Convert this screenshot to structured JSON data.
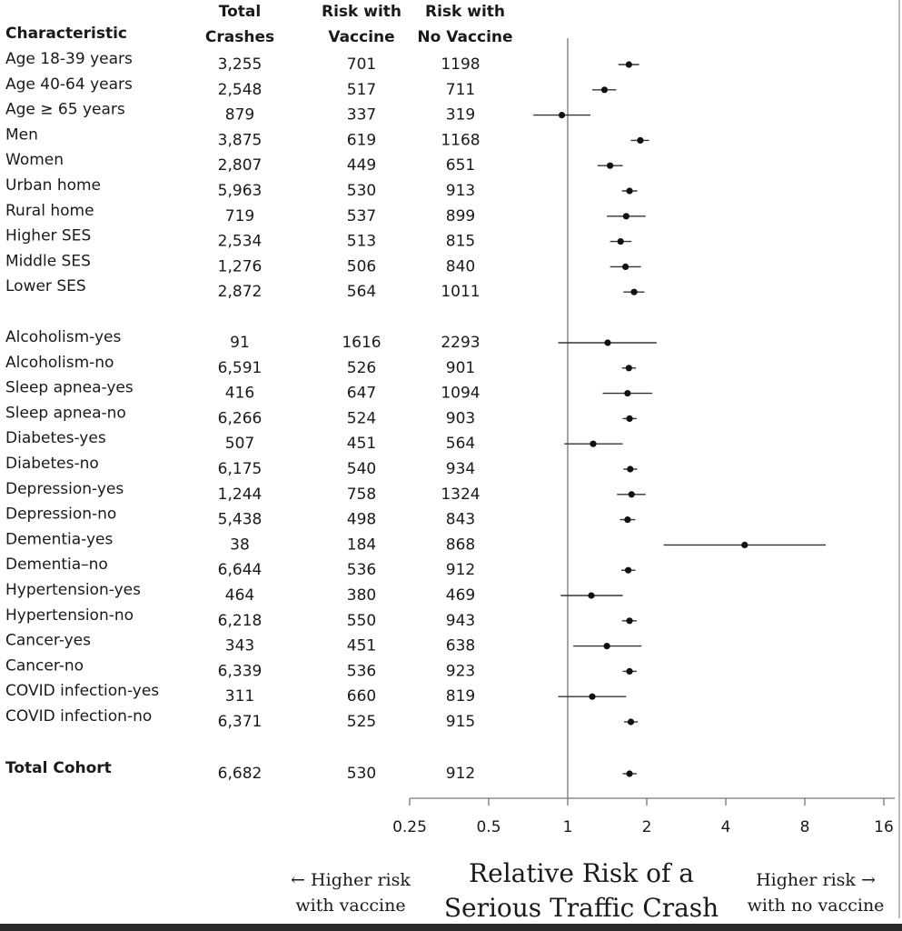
{
  "headers": {
    "characteristic": "Characteristic",
    "total_crashes": [
      "Total",
      "Crashes"
    ],
    "risk_vaccine": [
      "Risk with",
      "Vaccine"
    ],
    "risk_no_vaccine": [
      "Risk with",
      "No Vaccine"
    ]
  },
  "footer": {
    "left_note": [
      "← Higher risk",
      "with vaccine"
    ],
    "axis_title": [
      "Relative Risk of a",
      "Serious Traffic Crash"
    ],
    "right_note": [
      "Higher risk →",
      "with no vaccine"
    ]
  },
  "chart_data": {
    "type": "forest",
    "xscale": "log2",
    "xlim": [
      0.25,
      16
    ],
    "xticks": [
      "0.25",
      "0.5",
      "1",
      "2",
      "4",
      "8",
      "16"
    ],
    "reference_line": 1,
    "rows": [
      {
        "label": "Age 18-39 years",
        "crashes": "3,255",
        "vac": "701",
        "novac": "1198",
        "rr": 1.71,
        "lo": 1.56,
        "hi": 1.87,
        "group": 0
      },
      {
        "label": "Age 40-64 years",
        "crashes": "2,548",
        "vac": "517",
        "novac": "711",
        "rr": 1.38,
        "lo": 1.24,
        "hi": 1.53,
        "group": 0
      },
      {
        "label": "Age ≥ 65 years",
        "crashes": "879",
        "vac": "337",
        "novac": "319",
        "rr": 0.95,
        "lo": 0.74,
        "hi": 1.22,
        "group": 0
      },
      {
        "label": "Men",
        "crashes": "3,875",
        "vac": "619",
        "novac": "1168",
        "rr": 1.89,
        "lo": 1.74,
        "hi": 2.04,
        "group": 0
      },
      {
        "label": "Women",
        "crashes": "2,807",
        "vac": "449",
        "novac": "651",
        "rr": 1.45,
        "lo": 1.3,
        "hi": 1.62,
        "group": 0
      },
      {
        "label": "Urban home",
        "crashes": "5,963",
        "vac": "530",
        "novac": "913",
        "rr": 1.72,
        "lo": 1.61,
        "hi": 1.84,
        "group": 0
      },
      {
        "label": "Rural home",
        "crashes": "719",
        "vac": "537",
        "novac": "899",
        "rr": 1.67,
        "lo": 1.41,
        "hi": 1.98,
        "group": 0
      },
      {
        "label": "Higher SES",
        "crashes": "2,534",
        "vac": "513",
        "novac": "815",
        "rr": 1.59,
        "lo": 1.45,
        "hi": 1.75,
        "group": 0
      },
      {
        "label": "Middle SES",
        "crashes": "1,276",
        "vac": "506",
        "novac": "840",
        "rr": 1.66,
        "lo": 1.45,
        "hi": 1.9,
        "group": 0
      },
      {
        "label": "Lower SES",
        "crashes": "2,872",
        "vac": "564",
        "novac": "1011",
        "rr": 1.79,
        "lo": 1.63,
        "hi": 1.96,
        "group": 0
      },
      {
        "label": "Alcoholism-yes",
        "crashes": "91",
        "vac": "1616",
        "novac": "2293",
        "rr": 1.42,
        "lo": 0.92,
        "hi": 2.18,
        "group": 1
      },
      {
        "label": "Alcoholism-no",
        "crashes": "6,591",
        "vac": "526",
        "novac": "901",
        "rr": 1.71,
        "lo": 1.61,
        "hi": 1.82,
        "group": 1
      },
      {
        "label": "Sleep apnea-yes",
        "crashes": "416",
        "vac": "647",
        "novac": "1094",
        "rr": 1.69,
        "lo": 1.36,
        "hi": 2.1,
        "group": 1
      },
      {
        "label": "Sleep apnea-no",
        "crashes": "6,266",
        "vac": "524",
        "novac": "903",
        "rr": 1.72,
        "lo": 1.62,
        "hi": 1.83,
        "group": 1
      },
      {
        "label": "Diabetes-yes",
        "crashes": "507",
        "vac": "451",
        "novac": "564",
        "rr": 1.25,
        "lo": 0.97,
        "hi": 1.62,
        "group": 1
      },
      {
        "label": "Diabetes-no",
        "crashes": "6,175",
        "vac": "540",
        "novac": "934",
        "rr": 1.73,
        "lo": 1.63,
        "hi": 1.84,
        "group": 1
      },
      {
        "label": "Depression-yes",
        "crashes": "1,244",
        "vac": "758",
        "novac": "1324",
        "rr": 1.75,
        "lo": 1.54,
        "hi": 1.98,
        "group": 1
      },
      {
        "label": "Depression-no",
        "crashes": "5,438",
        "vac": "498",
        "novac": "843",
        "rr": 1.69,
        "lo": 1.58,
        "hi": 1.81,
        "group": 1
      },
      {
        "label": "Dementia-yes",
        "crashes": "38",
        "vac": "184",
        "novac": "868",
        "rr": 4.72,
        "lo": 2.32,
        "hi": 9.61,
        "group": 1
      },
      {
        "label": "Dementia–no",
        "crashes": "6,644",
        "vac": "536",
        "novac": "912",
        "rr": 1.7,
        "lo": 1.6,
        "hi": 1.81,
        "group": 1
      },
      {
        "label": "Hypertension-yes",
        "crashes": "464",
        "vac": "380",
        "novac": "469",
        "rr": 1.23,
        "lo": 0.94,
        "hi": 1.62,
        "group": 1
      },
      {
        "label": "Hypertension-no",
        "crashes": "6,218",
        "vac": "550",
        "novac": "943",
        "rr": 1.72,
        "lo": 1.61,
        "hi": 1.83,
        "group": 1
      },
      {
        "label": "Cancer-yes",
        "crashes": "343",
        "vac": "451",
        "novac": "638",
        "rr": 1.41,
        "lo": 1.05,
        "hi": 1.91,
        "group": 1
      },
      {
        "label": "Cancer-no",
        "crashes": "6,339",
        "vac": "536",
        "novac": "923",
        "rr": 1.72,
        "lo": 1.62,
        "hi": 1.83,
        "group": 1
      },
      {
        "label": "COVID infection-yes",
        "crashes": "311",
        "vac": "660",
        "novac": "819",
        "rr": 1.24,
        "lo": 0.92,
        "hi": 1.67,
        "group": 1
      },
      {
        "label": "COVID infection-no",
        "crashes": "6,371",
        "vac": "525",
        "novac": "915",
        "rr": 1.74,
        "lo": 1.64,
        "hi": 1.85,
        "group": 1
      },
      {
        "label": "Total Cohort",
        "crashes": "6,682",
        "vac": "530",
        "novac": "912",
        "rr": 1.72,
        "lo": 1.62,
        "hi": 1.83,
        "group": 2,
        "bold": true
      }
    ]
  }
}
